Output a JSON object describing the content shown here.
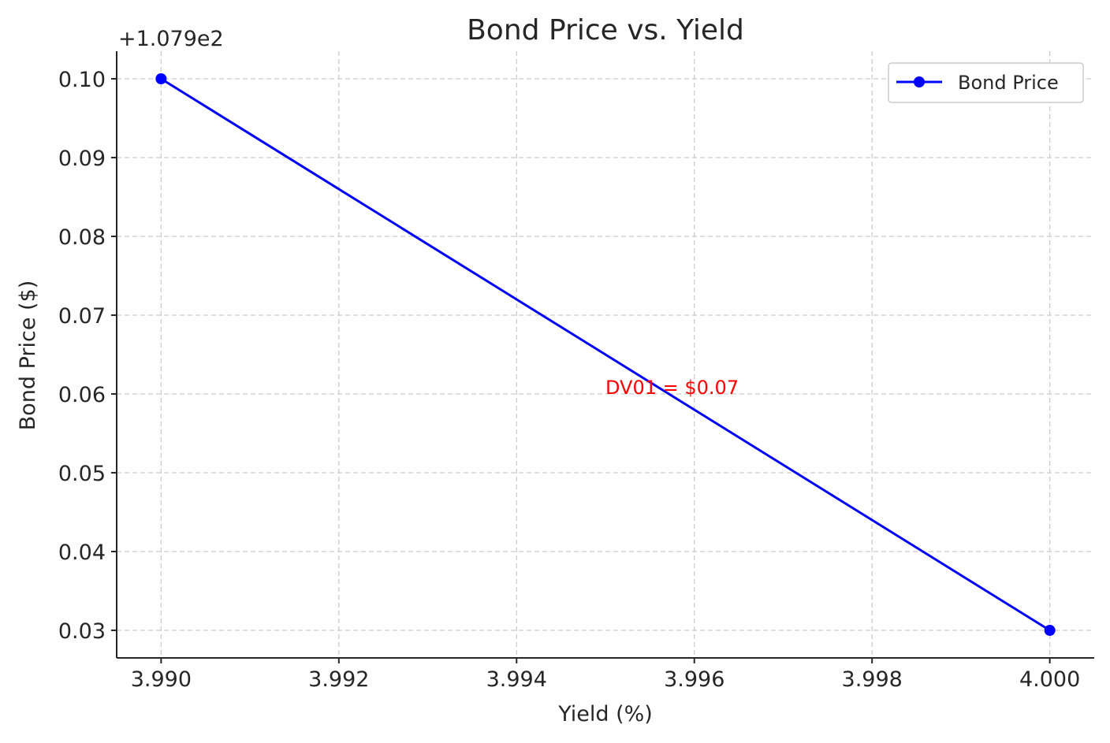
{
  "chart_data": {
    "type": "line",
    "title": "Bond Price vs. Yield",
    "xlabel": "Yield (%)",
    "ylabel": "Bond Price ($)",
    "y_offset_text": "+1.079e2",
    "x_ticks": [
      "3.990",
      "3.992",
      "3.994",
      "3.996",
      "3.998",
      "4.000"
    ],
    "y_ticks": [
      "0.03",
      "0.04",
      "0.05",
      "0.06",
      "0.07",
      "0.08",
      "0.09",
      "0.10"
    ],
    "xlim": [
      3.9895,
      4.0005
    ],
    "ylim": [
      0.0265,
      0.1035
    ],
    "y_offset_value": 107.9,
    "series": [
      {
        "name": "Bond Price",
        "color": "#0000ff",
        "marker": "circle",
        "x": [
          3.99,
          4.0
        ],
        "y": [
          0.1,
          0.03
        ]
      }
    ],
    "annotation": {
      "text": "DV01 = $0.07",
      "x": 3.995,
      "y": 0.06,
      "color": "#ff0000"
    },
    "legend_position": "upper-right",
    "grid": true
  }
}
